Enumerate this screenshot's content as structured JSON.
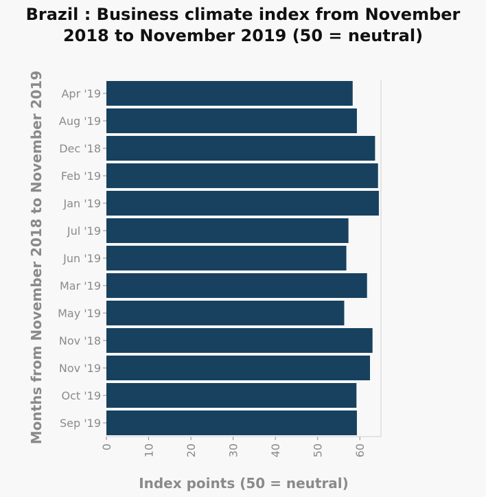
{
  "chart_data": {
    "type": "bar",
    "orientation": "horizontal",
    "title_line1": "Brazil : Business climate index from November",
    "title_line2": "2018 to November 2019 (50 = neutral)",
    "xlabel": "Index points (50 = neutral)",
    "ylabel": "Months from November 2018 to November 2019",
    "categories": [
      "Apr '19",
      "Aug '19",
      "Dec '18",
      "Feb '19",
      "Jan '19",
      "Jul '19",
      "Jun '19",
      "Mar '19",
      "May '19",
      "Nov '18",
      "Nov '19",
      "Oct '19",
      "Sep '19"
    ],
    "values": [
      58.3,
      59.3,
      63.6,
      64.3,
      64.5,
      57.3,
      56.8,
      61.7,
      56.3,
      63.0,
      62.4,
      59.2,
      59.3
    ],
    "xlim": [
      0,
      65
    ],
    "xticks": [
      0,
      10,
      20,
      30,
      40,
      50,
      60
    ],
    "bar_color": "#17415f",
    "grid": false,
    "legend": "none"
  }
}
